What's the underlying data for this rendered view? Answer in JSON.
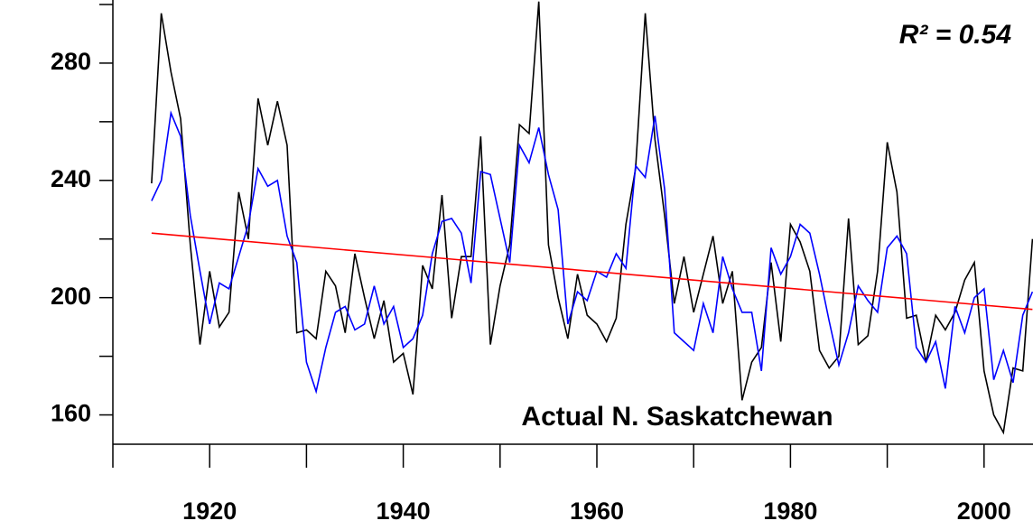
{
  "chart_data": {
    "type": "line",
    "annotation": "Actual N. Saskatchewan",
    "r_squared_label": "R² = 0.54",
    "x": [
      1914,
      1915,
      1916,
      1917,
      1918,
      1919,
      1920,
      1921,
      1922,
      1923,
      1924,
      1925,
      1926,
      1927,
      1928,
      1929,
      1930,
      1931,
      1932,
      1933,
      1934,
      1935,
      1936,
      1937,
      1938,
      1939,
      1940,
      1941,
      1942,
      1943,
      1944,
      1945,
      1946,
      1947,
      1948,
      1949,
      1950,
      1951,
      1952,
      1953,
      1954,
      1955,
      1956,
      1957,
      1958,
      1959,
      1960,
      1961,
      1962,
      1963,
      1964,
      1965,
      1966,
      1967,
      1968,
      1969,
      1970,
      1971,
      1972,
      1973,
      1974,
      1975,
      1976,
      1977,
      1978,
      1979,
      1980,
      1981,
      1982,
      1983,
      1984,
      1985,
      1986,
      1987,
      1988,
      1989,
      1990,
      1991,
      1992,
      1993,
      1994,
      1995,
      1996,
      1997,
      1998,
      1999,
      2000,
      2001,
      2002,
      2003,
      2004,
      2005
    ],
    "series": [
      {
        "color": "#000000",
        "values": [
          239,
          297,
          277,
          261,
          218,
          184,
          209,
          190,
          195,
          236,
          220,
          268,
          252,
          267,
          252,
          188,
          189,
          186,
          209,
          204,
          188,
          215,
          200,
          186,
          199,
          178,
          181,
          167,
          211,
          203,
          235,
          193,
          214,
          214,
          255,
          184,
          204,
          218,
          259,
          256,
          301,
          218,
          200,
          186,
          208,
          194,
          191,
          185,
          193,
          225,
          244,
          297,
          254,
          228,
          198,
          214,
          195,
          208,
          221,
          198,
          209,
          165,
          178,
          183,
          212,
          185,
          225,
          219,
          209,
          182,
          176,
          180,
          227,
          184,
          187,
          209,
          253,
          236,
          193,
          194,
          178,
          194,
          189,
          195,
          206,
          212,
          175,
          160,
          154,
          176,
          175,
          220
        ]
      },
      {
        "color": "#0000ff",
        "values": [
          233,
          240,
          263,
          255,
          228,
          209,
          191,
          205,
          203,
          214,
          225,
          244,
          238,
          240,
          221,
          212,
          178,
          168,
          183,
          195,
          197,
          189,
          191,
          204,
          191,
          197,
          183,
          186,
          194,
          215,
          226,
          227,
          222,
          205,
          243,
          242,
          227,
          212,
          252,
          246,
          258,
          242,
          230,
          191,
          202,
          199,
          209,
          207,
          215,
          210,
          245,
          241,
          262,
          237,
          188,
          185,
          182,
          198,
          188,
          214,
          203,
          195,
          195,
          175,
          217,
          208,
          214,
          225,
          222,
          208,
          192,
          177,
          188,
          204,
          199,
          195,
          217,
          221,
          215,
          183,
          178,
          185,
          169,
          197,
          188,
          200,
          203,
          172,
          182,
          171,
          194,
          202
        ]
      }
    ],
    "trend": {
      "color": "#ff0000",
      "x": [
        1914,
        2005
      ],
      "values": [
        222,
        196
      ]
    },
    "xlim": [
      1910,
      2005
    ],
    "xticks": [
      1920,
      1940,
      1960,
      1980,
      2000
    ],
    "xminorticks": [
      1910,
      1930,
      1950,
      1970,
      1990
    ],
    "ylim": [
      150,
      301.5
    ],
    "yticks": [
      160,
      200,
      240,
      280
    ],
    "yminorticks": [
      180,
      220,
      260,
      300
    ]
  }
}
